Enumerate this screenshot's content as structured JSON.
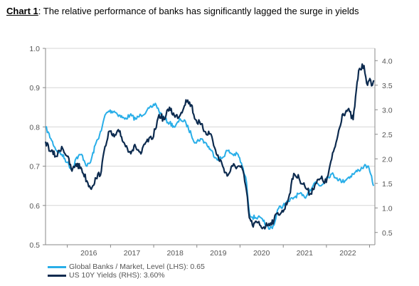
{
  "header": {
    "lead": "Chart 1",
    "text": ": The relative performance of banks has significantly lagged the surge in yields"
  },
  "colors": {
    "banks": "#29aee8",
    "yields": "#0d2b4f",
    "grid": "#d6d6d6",
    "axis": "#888888"
  },
  "chart_data": {
    "type": "line",
    "title": "Chart 1: The relative performance of banks has significantly lagged the surge in yields",
    "x_range": [
      "2015-07-01",
      "2023-02-15"
    ],
    "x_ticks": [
      "2016",
      "2017",
      "2018",
      "2019",
      "2020",
      "2021",
      "2022"
    ],
    "y_left": {
      "range": [
        0.5,
        1.0
      ],
      "ticks": [
        "0.5",
        "0.6",
        "0.7",
        "0.8",
        "0.9",
        "1.0"
      ]
    },
    "y_right": {
      "range": [
        0.25,
        4.25
      ],
      "ticks": [
        "0.5",
        "1.0",
        "1.5",
        "2.0",
        "2.5",
        "3.0",
        "3.5",
        "4.0"
      ]
    },
    "grid": true,
    "legend_position": "bottom-left",
    "series": [
      {
        "name": "Global Banks / Market, Level (LHS): 0.65",
        "axis": "left",
        "points": [
          [
            "2015-07-01",
            0.8
          ],
          [
            "2015-08-15",
            0.77
          ],
          [
            "2015-10-01",
            0.74
          ],
          [
            "2015-11-15",
            0.73
          ],
          [
            "2016-01-01",
            0.71
          ],
          [
            "2016-02-10",
            0.69
          ],
          [
            "2016-03-15",
            0.72
          ],
          [
            "2016-05-01",
            0.73
          ],
          [
            "2016-06-15",
            0.7
          ],
          [
            "2016-07-15",
            0.71
          ],
          [
            "2016-09-01",
            0.76
          ],
          [
            "2016-10-15",
            0.79
          ],
          [
            "2016-11-15",
            0.83
          ],
          [
            "2016-12-15",
            0.84
          ],
          [
            "2017-02-01",
            0.84
          ],
          [
            "2017-03-15",
            0.83
          ],
          [
            "2017-05-01",
            0.82
          ],
          [
            "2017-06-15",
            0.83
          ],
          [
            "2017-08-01",
            0.82
          ],
          [
            "2017-09-15",
            0.83
          ],
          [
            "2017-11-01",
            0.84
          ],
          [
            "2017-12-15",
            0.85
          ],
          [
            "2018-01-15",
            0.86
          ],
          [
            "2018-02-15",
            0.84
          ],
          [
            "2018-04-01",
            0.82
          ],
          [
            "2018-05-15",
            0.81
          ],
          [
            "2018-07-01",
            0.8
          ],
          [
            "2018-08-15",
            0.82
          ],
          [
            "2018-10-01",
            0.81
          ],
          [
            "2018-11-15",
            0.78
          ],
          [
            "2018-12-20",
            0.76
          ],
          [
            "2019-02-01",
            0.77
          ],
          [
            "2019-03-15",
            0.76
          ],
          [
            "2019-05-01",
            0.74
          ],
          [
            "2019-06-15",
            0.72
          ],
          [
            "2019-08-01",
            0.72
          ],
          [
            "2019-09-15",
            0.74
          ],
          [
            "2019-11-01",
            0.73
          ],
          [
            "2019-12-15",
            0.73
          ],
          [
            "2020-01-20",
            0.7
          ],
          [
            "2020-02-25",
            0.66
          ],
          [
            "2020-03-20",
            0.58
          ],
          [
            "2020-04-15",
            0.57
          ],
          [
            "2020-06-01",
            0.57
          ],
          [
            "2020-07-15",
            0.56
          ],
          [
            "2020-09-01",
            0.54
          ],
          [
            "2020-10-15",
            0.55
          ],
          [
            "2020-11-15",
            0.59
          ],
          [
            "2020-12-31",
            0.6
          ],
          [
            "2021-02-15",
            0.61
          ],
          [
            "2021-03-31",
            0.62
          ],
          [
            "2021-05-15",
            0.63
          ],
          [
            "2021-07-01",
            0.62
          ],
          [
            "2021-08-15",
            0.64
          ],
          [
            "2021-10-01",
            0.66
          ],
          [
            "2021-11-15",
            0.65
          ],
          [
            "2021-12-31",
            0.67
          ],
          [
            "2022-02-15",
            0.68
          ],
          [
            "2022-03-31",
            0.67
          ],
          [
            "2022-05-15",
            0.66
          ],
          [
            "2022-07-01",
            0.67
          ],
          [
            "2022-08-15",
            0.68
          ],
          [
            "2022-10-01",
            0.69
          ],
          [
            "2022-11-15",
            0.7
          ],
          [
            "2022-12-15",
            0.7
          ],
          [
            "2023-01-10",
            0.68
          ],
          [
            "2023-01-25",
            0.66
          ],
          [
            "2023-02-05",
            0.65
          ]
        ]
      },
      {
        "name": "US 10Y Yields (RHS): 3.60%",
        "axis": "right",
        "points": [
          [
            "2015-07-01",
            2.35
          ],
          [
            "2015-08-15",
            2.15
          ],
          [
            "2015-10-01",
            2.05
          ],
          [
            "2015-11-15",
            2.25
          ],
          [
            "2016-01-01",
            2.05
          ],
          [
            "2016-02-10",
            1.75
          ],
          [
            "2016-03-15",
            1.9
          ],
          [
            "2016-05-01",
            1.8
          ],
          [
            "2016-06-15",
            1.55
          ],
          [
            "2016-07-15",
            1.4
          ],
          [
            "2016-09-01",
            1.6
          ],
          [
            "2016-10-15",
            1.75
          ],
          [
            "2016-11-15",
            2.25
          ],
          [
            "2016-12-15",
            2.55
          ],
          [
            "2017-02-01",
            2.45
          ],
          [
            "2017-03-15",
            2.55
          ],
          [
            "2017-05-01",
            2.3
          ],
          [
            "2017-06-15",
            2.15
          ],
          [
            "2017-08-01",
            2.25
          ],
          [
            "2017-09-15",
            2.1
          ],
          [
            "2017-11-01",
            2.35
          ],
          [
            "2017-12-15",
            2.4
          ],
          [
            "2018-01-15",
            2.6
          ],
          [
            "2018-02-15",
            2.9
          ],
          [
            "2018-04-01",
            2.8
          ],
          [
            "2018-05-15",
            3.05
          ],
          [
            "2018-07-01",
            2.85
          ],
          [
            "2018-08-15",
            2.9
          ],
          [
            "2018-10-01",
            3.2
          ],
          [
            "2018-11-15",
            3.1
          ],
          [
            "2018-12-20",
            2.8
          ],
          [
            "2019-02-01",
            2.7
          ],
          [
            "2019-03-15",
            2.55
          ],
          [
            "2019-05-01",
            2.5
          ],
          [
            "2019-06-15",
            2.1
          ],
          [
            "2019-08-01",
            1.9
          ],
          [
            "2019-09-15",
            1.65
          ],
          [
            "2019-11-01",
            1.85
          ],
          [
            "2019-12-15",
            1.85
          ],
          [
            "2020-01-20",
            1.8
          ],
          [
            "2020-02-25",
            1.35
          ],
          [
            "2020-03-20",
            0.8
          ],
          [
            "2020-04-15",
            0.65
          ],
          [
            "2020-06-01",
            0.7
          ],
          [
            "2020-07-15",
            0.6
          ],
          [
            "2020-09-01",
            0.68
          ],
          [
            "2020-10-15",
            0.75
          ],
          [
            "2020-11-15",
            0.9
          ],
          [
            "2020-12-31",
            0.92
          ],
          [
            "2021-02-15",
            1.2
          ],
          [
            "2021-03-31",
            1.7
          ],
          [
            "2021-05-15",
            1.6
          ],
          [
            "2021-07-01",
            1.45
          ],
          [
            "2021-08-15",
            1.28
          ],
          [
            "2021-10-01",
            1.5
          ],
          [
            "2021-11-15",
            1.6
          ],
          [
            "2021-12-31",
            1.52
          ],
          [
            "2022-02-15",
            2.0
          ],
          [
            "2022-03-31",
            2.4
          ],
          [
            "2022-05-15",
            2.9
          ],
          [
            "2022-07-01",
            3.0
          ],
          [
            "2022-08-15",
            2.8
          ],
          [
            "2022-10-01",
            3.8
          ],
          [
            "2022-11-15",
            3.9
          ],
          [
            "2022-12-15",
            3.5
          ],
          [
            "2023-01-10",
            3.6
          ],
          [
            "2023-01-25",
            3.5
          ],
          [
            "2023-02-05",
            3.6
          ]
        ]
      }
    ]
  }
}
